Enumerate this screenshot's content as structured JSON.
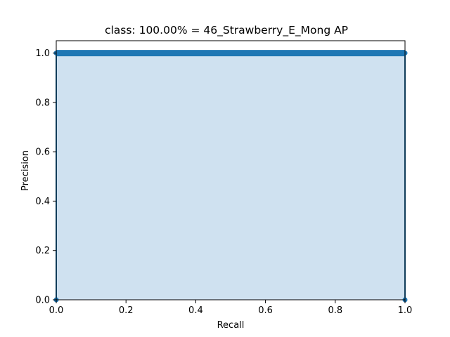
{
  "chart_data": {
    "type": "area",
    "title": "class: 100.00% = 46_Strawberry_E_Mong AP",
    "xlabel": "Recall",
    "ylabel": "Precision",
    "xlim": [
      0.0,
      1.0
    ],
    "ylim": [
      0.0,
      1.05
    ],
    "xticks": [
      "0.0",
      "0.2",
      "0.4",
      "0.6",
      "0.8",
      "1.0"
    ],
    "yticks": [
      "0.0",
      "0.2",
      "0.4",
      "0.6",
      "0.8",
      "1.0"
    ],
    "grid": false,
    "legend": "none",
    "series": [
      {
        "x": [
          0.0,
          0.0,
          1.0,
          1.0
        ],
        "y": [
          0.0,
          1.0,
          1.0,
          0.0
        ]
      }
    ],
    "colors": {
      "line": "#1f77b4",
      "fill": "#cfe1f0"
    }
  }
}
